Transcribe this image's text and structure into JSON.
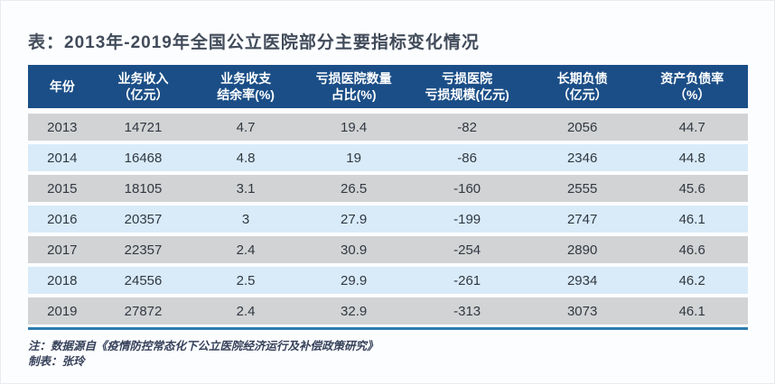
{
  "page": {
    "title": "表：2013年-2019年全国公立医院部分主要指标变化情况"
  },
  "chart_data": {
    "type": "table",
    "title": "表：2013年-2019年全国公立医院部分主要指标变化情况",
    "columns": [
      "年份",
      "业务收入（亿元）",
      "业务收支结余率(%)",
      "亏损医院数量占比(%)",
      "亏损医院亏损规模(亿元)",
      "长期负债（亿元）",
      "资产负债率（%）"
    ],
    "header_lines": [
      {
        "line1": "年份",
        "line2": ""
      },
      {
        "line1": "业务收入",
        "line2": "（亿元）"
      },
      {
        "line1": "业务收支",
        "line2": "结余率(%)"
      },
      {
        "line1": "亏损医院数量",
        "line2": "占比(%)"
      },
      {
        "line1": "亏损医院",
        "line2": "亏损规模(亿元)"
      },
      {
        "line1": "长期负债",
        "line2": "（亿元）"
      },
      {
        "line1": "资产负债率",
        "line2": "（%）"
      }
    ],
    "rows": [
      {
        "cells": [
          "2013",
          "14721",
          "4.7",
          "19.4",
          "-82",
          "2056",
          "44.7"
        ]
      },
      {
        "cells": [
          "2014",
          "16468",
          "4.8",
          "19",
          "-86",
          "2346",
          "44.8"
        ]
      },
      {
        "cells": [
          "2015",
          "18105",
          "3.1",
          "26.5",
          "-160",
          "2555",
          "45.6"
        ]
      },
      {
        "cells": [
          "2016",
          "20357",
          "3",
          "27.9",
          "-199",
          "2747",
          "46.1"
        ]
      },
      {
        "cells": [
          "2017",
          "22357",
          "2.4",
          "30.9",
          "-254",
          "2890",
          "46.6"
        ]
      },
      {
        "cells": [
          "2018",
          "24556",
          "2.5",
          "29.9",
          "-261",
          "2934",
          "46.2"
        ]
      },
      {
        "cells": [
          "2019",
          "27872",
          "2.4",
          "32.9",
          "-313",
          "3073",
          "46.1"
        ]
      }
    ]
  },
  "footnotes": {
    "source": "注：数据源自《疫情防控常态化下公立医院经济运行及补偿政策研究》",
    "author": "制表：张玲"
  },
  "colors": {
    "header_bg": "#1b4e87",
    "row_gray": "#d2d3d4",
    "row_blue": "#d9ebf8",
    "bottom_rule": "#2d7dad",
    "title_text": "#414b5a",
    "cell_text": "#303842",
    "footnote_text": "#36415a"
  }
}
